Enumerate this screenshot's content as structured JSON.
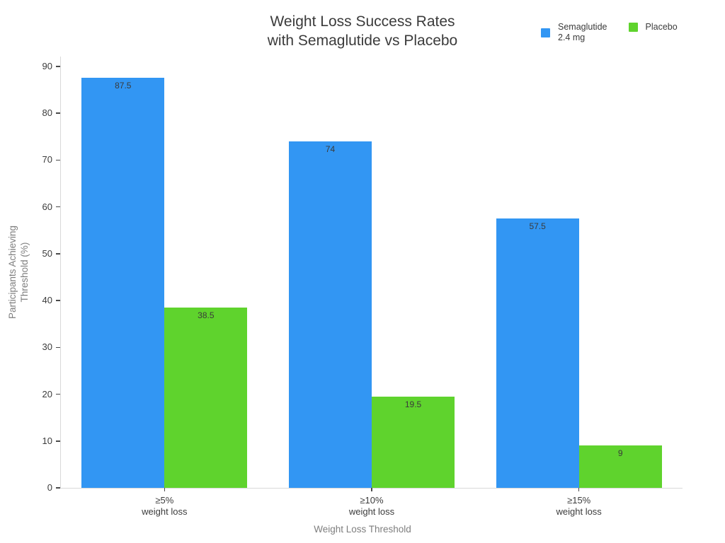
{
  "title": {
    "lines": [
      "Weight Loss Success Rates",
      "with Semaglutide vs Placebo"
    ]
  },
  "legend": {
    "items": [
      {
        "id": "semaglutide",
        "label_lines": [
          "Semaglutide",
          "2.4 mg"
        ],
        "color": "#3296F3"
      },
      {
        "id": "placebo",
        "label_lines": [
          "Placebo"
        ],
        "color": "#5FD32D"
      }
    ]
  },
  "axes": {
    "y_title_lines": [
      "Participants Achieving",
      "Threshold (%)"
    ],
    "x_title": "Weight Loss Threshold",
    "y_ticks": [
      0,
      10,
      20,
      30,
      40,
      50,
      60,
      70,
      80,
      90
    ]
  },
  "chart_data": {
    "type": "bar",
    "title": "Weight Loss Success Rates with Semaglutide vs Placebo",
    "categories": [
      "≥5% weight loss",
      "≥10% weight loss",
      "≥15% weight loss"
    ],
    "category_tick_lines": [
      [
        "≥5%",
        "weight loss"
      ],
      [
        "≥10%",
        "weight loss"
      ],
      [
        "≥15%",
        "weight loss"
      ]
    ],
    "series": [
      {
        "name": "Semaglutide 2.4 mg",
        "color": "#3296F3",
        "values": [
          87.5,
          74,
          57.5
        ]
      },
      {
        "name": "Placebo",
        "color": "#5FD32D",
        "values": [
          38.5,
          19.5,
          9
        ]
      }
    ],
    "bar_value_labels": [
      "87.5",
      "74",
      "57.5",
      "38.5",
      "19.5",
      "9"
    ],
    "xlabel": "Weight Loss Threshold",
    "ylabel": "Participants Achieving Threshold (%)",
    "ylim": [
      0,
      92.1
    ],
    "y_tick_step": 10,
    "grid": false,
    "legend_position": "top-right",
    "background": "#FFFFFF"
  },
  "colors": {
    "title_text": "#3B3B3B",
    "tick_text": "#3B3B3B",
    "axis_title_text": "#7E7E7E",
    "axis_line": "#D9D9D9",
    "tick_mark": "#4A4A4A",
    "bar_label_text": "#3A3A3A"
  }
}
